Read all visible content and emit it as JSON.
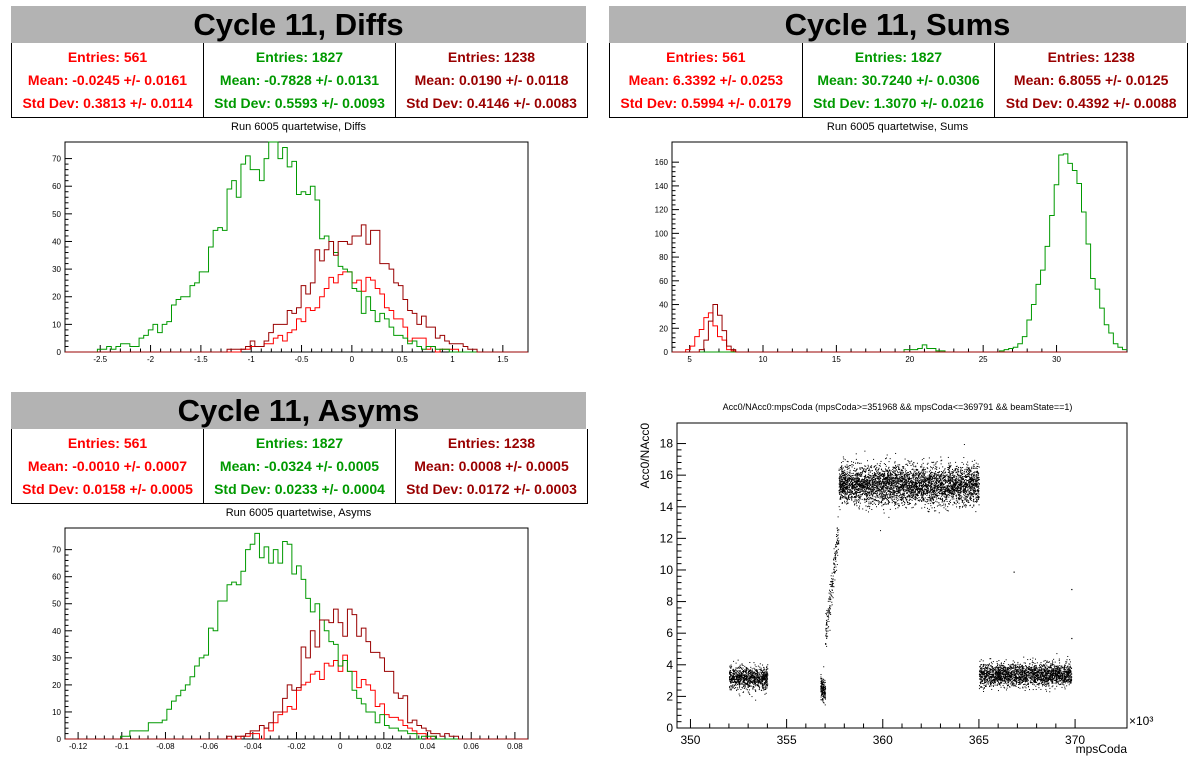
{
  "colors": {
    "red": "#ff0000",
    "green": "#009900",
    "darkred": "#990000",
    "banner": "#b3b3b3"
  },
  "panels": {
    "diffs": {
      "banner": "Cycle 11, Diffs",
      "subtitle": "Run 6005 quartetwise, Diffs",
      "stats": [
        {
          "entries": "Entries: 561",
          "mean": "Mean: -0.0245 +/- 0.0161",
          "std": "Std Dev: 0.3813 +/- 0.0114"
        },
        {
          "entries": "Entries: 1827",
          "mean": "Mean: -0.7828 +/- 0.0131",
          "std": "Std Dev: 0.5593 +/- 0.0093"
        },
        {
          "entries": "Entries: 1238",
          "mean": "Mean: 0.0190 +/- 0.0118",
          "std": "Std Dev: 0.4146 +/- 0.0083"
        }
      ]
    },
    "sums": {
      "banner": "Cycle 11, Sums",
      "subtitle": "Run 6005 quartetwise, Sums",
      "stats": [
        {
          "entries": "Entries: 561",
          "mean": "Mean: 6.3392 +/- 0.0253",
          "std": "Std Dev: 0.5994 +/- 0.0179"
        },
        {
          "entries": "Entries: 1827",
          "mean": "Mean: 30.7240 +/- 0.0306",
          "std": "Std Dev: 1.3070 +/- 0.0216"
        },
        {
          "entries": "Entries: 1238",
          "mean": "Mean: 6.8055 +/- 0.0125",
          "std": "Std Dev: 0.4392 +/- 0.0088"
        }
      ]
    },
    "asyms": {
      "banner": "Cycle 11, Asyms",
      "subtitle": "Run 6005 quartetwise, Asyms",
      "stats": [
        {
          "entries": "Entries: 561",
          "mean": "Mean: -0.0010 +/- 0.0007",
          "std": "Std Dev: 0.0158 +/- 0.0005"
        },
        {
          "entries": "Entries: 1827",
          "mean": "Mean: -0.0324 +/- 0.0005",
          "std": "Std Dev: 0.0233 +/- 0.0004"
        },
        {
          "entries": "Entries: 1238",
          "mean": "Mean: 0.0008 +/- 0.0005",
          "std": "Std Dev: 0.0172 +/- 0.0003"
        }
      ]
    },
    "scatter": {
      "title": "Acc0/NAcc0:mpsCoda (mpsCoda>=351968 && mpsCoda<=369791 && beamState==1)"
    }
  },
  "chart_data": [
    {
      "type": "histogram",
      "id": "diffs",
      "title": "Run 6005 quartetwise, Diffs",
      "xlim": [
        -2.85,
        1.75
      ],
      "ylim": [
        0,
        76
      ],
      "xticks": [
        -2.5,
        -2,
        -1.5,
        -1,
        -0.5,
        0,
        0.5,
        1,
        1.5
      ],
      "xtick_labels": [
        "-2.5",
        "-2",
        "-1.5",
        "-1",
        "-0.5",
        "0",
        "0.5",
        "1",
        "1.5"
      ],
      "yticks": [
        0,
        10,
        20,
        30,
        40,
        50,
        60,
        70
      ],
      "ytick_labels": [
        "0",
        "10",
        "20",
        "30",
        "40",
        "50",
        "60",
        "70"
      ],
      "series": [
        {
          "color": "#ff0000",
          "entries": 561,
          "mean": -0.0245,
          "std": 0.3813,
          "peak": 27
        },
        {
          "color": "#009900",
          "entries": 1827,
          "mean": -0.7828,
          "std": 0.5593,
          "peak": 71
        },
        {
          "color": "#990000",
          "entries": 1238,
          "mean": 0.019,
          "std": 0.4146,
          "peak": 43
        }
      ]
    },
    {
      "type": "histogram",
      "id": "sums",
      "title": "Run 6005 quartetwise, Sums",
      "xlim": [
        3.8,
        34.8
      ],
      "ylim": [
        0,
        177
      ],
      "xticks": [
        5,
        10,
        15,
        20,
        25,
        30
      ],
      "xtick_labels": [
        "5",
        "10",
        "15",
        "20",
        "25",
        "30"
      ],
      "yticks": [
        0,
        20,
        40,
        60,
        80,
        100,
        120,
        140,
        160
      ],
      "ytick_labels": [
        "0",
        "20",
        "40",
        "60",
        "80",
        "100",
        "120",
        "140",
        "160"
      ],
      "series": [
        {
          "color": "#ff0000",
          "entries": 561,
          "mean": 6.3392,
          "std": 0.5994,
          "peak": 30
        },
        {
          "color": "#009900",
          "entries": 1827,
          "mean": 30.724,
          "std": 1.307,
          "peak": 170,
          "secondary": {
            "mean": 20.8,
            "std": 0.7,
            "peak": 4
          }
        },
        {
          "color": "#990000",
          "entries": 1238,
          "mean": 6.8055,
          "std": 0.4392,
          "peak": 38
        }
      ]
    },
    {
      "type": "histogram",
      "id": "asyms",
      "title": "Run 6005 quartetwise, Asyms",
      "xlim": [
        -0.126,
        0.086
      ],
      "ylim": [
        0,
        78
      ],
      "xticks": [
        -0.12,
        -0.1,
        -0.08,
        -0.06,
        -0.04,
        -0.02,
        0,
        0.02,
        0.04,
        0.06,
        0.08
      ],
      "xtick_labels": [
        "-0.12",
        "-0.1",
        "-0.08",
        "-0.06",
        "-0.04",
        "-0.02",
        "0",
        "0.02",
        "0.04",
        "0.06",
        "0.08"
      ],
      "yticks": [
        0,
        10,
        20,
        30,
        40,
        50,
        60,
        70
      ],
      "ytick_labels": [
        "0",
        "10",
        "20",
        "30",
        "40",
        "50",
        "60",
        "70"
      ],
      "series": [
        {
          "color": "#ff0000",
          "entries": 561,
          "mean": -0.001,
          "std": 0.0158,
          "peak": 28
        },
        {
          "color": "#009900",
          "entries": 1827,
          "mean": -0.0324,
          "std": 0.0233,
          "peak": 75
        },
        {
          "color": "#990000",
          "entries": 1238,
          "mean": 0.0008,
          "std": 0.0172,
          "peak": 47
        }
      ]
    },
    {
      "type": "scatter",
      "id": "scatter",
      "title": "Acc0/NAcc0:mpsCoda (mpsCoda>=351968 && mpsCoda<=369791 && beamState==1)",
      "xlabel": "mpsCoda",
      "ylabel": "Acc0/NAcc0",
      "x_multiplier": "×10³",
      "xlim": [
        349.3,
        372.7
      ],
      "ylim": [
        0,
        19.3
      ],
      "xticks": [
        350,
        355,
        360,
        365,
        370
      ],
      "xtick_labels": [
        "350",
        "355",
        "360",
        "365",
        "370"
      ],
      "yticks": [
        0,
        2,
        4,
        6,
        8,
        10,
        12,
        14,
        16,
        18
      ],
      "ytick_labels": [
        "0",
        "2",
        "4",
        "6",
        "8",
        "10",
        "12",
        "14",
        "16",
        "18"
      ],
      "clusters": [
        {
          "x": [
            352.0,
            354.0
          ],
          "y_center": 3.2,
          "y_spread": 0.35,
          "count": 900
        },
        {
          "x": [
            356.75,
            357.0
          ],
          "y_center": 2.5,
          "y_spread": 0.4,
          "count": 160
        },
        {
          "x": [
            357.0,
            357.7
          ],
          "y_range": [
            6.0,
            12.4
          ],
          "count": 180
        },
        {
          "x": [
            357.7,
            365.0
          ],
          "y_center": 15.4,
          "y_spread": 0.6,
          "count": 4200
        },
        {
          "x": [
            365.0,
            369.8
          ],
          "y_center": 3.4,
          "y_spread": 0.35,
          "count": 2200
        }
      ],
      "outliers": [
        {
          "x": 366.8,
          "y": 9.9
        },
        {
          "x": 369.8,
          "y": 8.8
        },
        {
          "x": 369.8,
          "y": 5.7
        }
      ]
    }
  ]
}
